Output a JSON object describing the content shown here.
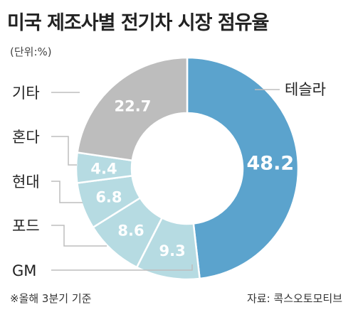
{
  "chart_data": {
    "type": "pie",
    "title": "미국 제조사별 전기차 시장 점유율",
    "unit_label": "(단위:%)",
    "categories": [
      "테슬라",
      "GM",
      "포드",
      "현대",
      "혼다",
      "기타"
    ],
    "values": [
      48.2,
      9.3,
      8.6,
      6.8,
      4.4,
      22.7
    ],
    "colors": [
      "#5ba3cd",
      "#b6dbe2",
      "#b6dbe2",
      "#b6dbe2",
      "#b6dbe2",
      "#bdbdbd"
    ],
    "label_color": "#ffffff",
    "leader_color": "#bdbdbd",
    "note": "※올해 3분기 기준",
    "source": "자료: 콕스오토모티브"
  }
}
